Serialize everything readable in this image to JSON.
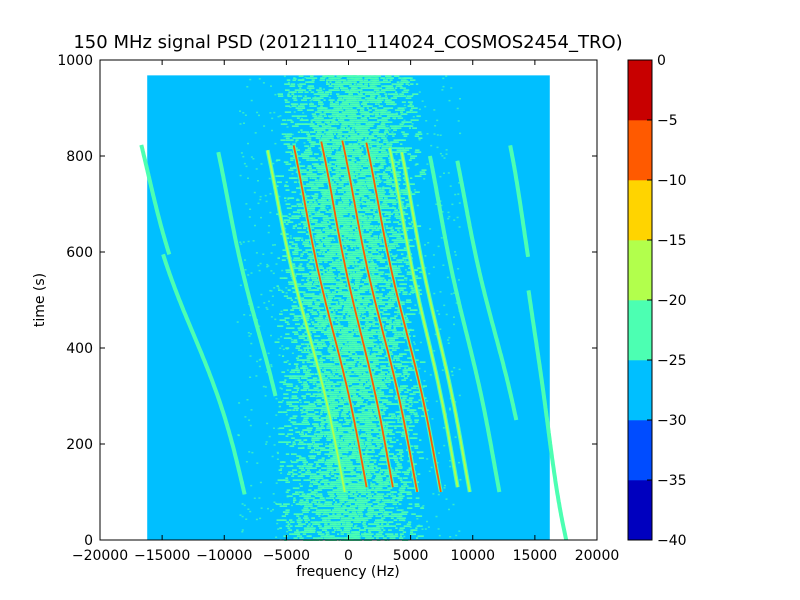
{
  "chart_data": {
    "type": "heatmap",
    "title": "150 MHz signal PSD (20121110_114024_COSMOS2454_TRO)",
    "xlabel": "frequency (Hz)",
    "ylabel": "time (s)",
    "xlim": [
      -20000,
      20000
    ],
    "ylim": [
      0,
      1000
    ],
    "xticks": [
      -20000,
      -15000,
      -10000,
      -5000,
      0,
      5000,
      10000,
      15000,
      20000
    ],
    "xtick_labels": [
      "−20000",
      "−15000",
      "−10000",
      "−5000",
      "0",
      "5000",
      "10000",
      "15000",
      "20000"
    ],
    "yticks": [
      0,
      200,
      400,
      600,
      800,
      1000
    ],
    "ytick_labels": [
      "0",
      "200",
      "400",
      "600",
      "800",
      "1000"
    ],
    "data_extent": {
      "freq_hz": [
        -16200,
        16200
      ],
      "time_s": [
        0,
        968
      ]
    },
    "colorbar": {
      "levels": [
        -40,
        -35,
        -30,
        -25,
        -20,
        -15,
        -10,
        -5,
        0
      ],
      "tick_labels": [
        "−40",
        "−35",
        "−30",
        "−25",
        "−20",
        "−15",
        "−10",
        "−5",
        "0"
      ],
      "colors": [
        "#0000bf",
        "#004cff",
        "#00bfff",
        "#4cffb2",
        "#b2ff4c",
        "#ffd400",
        "#ff5a00",
        "#c80000"
      ]
    },
    "background_level_color": "#00bfff",
    "noise_band": {
      "center_hz": 0,
      "width_hz": 5000,
      "color": "#4cffb2"
    },
    "traces": [
      {
        "f_center_hz": -12500,
        "amplitude_hz": 4200,
        "t_top": 595,
        "t_bottom": 95,
        "peak_db": -23
      },
      {
        "f_center_hz": -12000,
        "amplitude_hz": 4200,
        "t_top": 825,
        "t_bottom": 595,
        "peak_db": -23
      },
      {
        "f_center_hz": -7200,
        "amplitude_hz": 2800,
        "t_top": 810,
        "t_bottom": 300,
        "peak_db": -23
      },
      {
        "f_center_hz": -3200,
        "amplitude_hz": 2800,
        "t_top": 815,
        "t_bottom": 100,
        "peak_db": -19
      },
      {
        "f_center_hz": -1200,
        "amplitude_hz": 2600,
        "t_top": 825,
        "t_bottom": 110,
        "peak_db": -8
      },
      {
        "f_center_hz": 1000,
        "amplitude_hz": 2500,
        "t_top": 830,
        "t_bottom": 110,
        "peak_db": -8
      },
      {
        "f_center_hz": 2800,
        "amplitude_hz": 2600,
        "t_top": 835,
        "t_bottom": 100,
        "peak_db": -8
      },
      {
        "f_center_hz": 4700,
        "amplitude_hz": 2600,
        "t_top": 830,
        "t_bottom": 100,
        "peak_db": -8
      },
      {
        "f_center_hz": 6300,
        "amplitude_hz": 2400,
        "t_top": 820,
        "t_bottom": 110,
        "peak_db": -19
      },
      {
        "f_center_hz": 7200,
        "amplitude_hz": 2400,
        "t_top": 810,
        "t_bottom": 100,
        "peak_db": -19
      },
      {
        "f_center_hz": 9500,
        "amplitude_hz": 2500,
        "t_top": 800,
        "t_bottom": 100,
        "peak_db": -22
      },
      {
        "f_center_hz": 11800,
        "amplitude_hz": 2700,
        "t_top": 790,
        "t_bottom": 250,
        "peak_db": -23
      },
      {
        "f_center_hz": 15500,
        "amplitude_hz": 1800,
        "t_top": 825,
        "t_bottom": 590,
        "peak_db": -23
      },
      {
        "f_center_hz": 15000,
        "amplitude_hz": 1500,
        "t_top": 520,
        "t_bottom": 0,
        "peak_db": -23
      }
    ]
  }
}
